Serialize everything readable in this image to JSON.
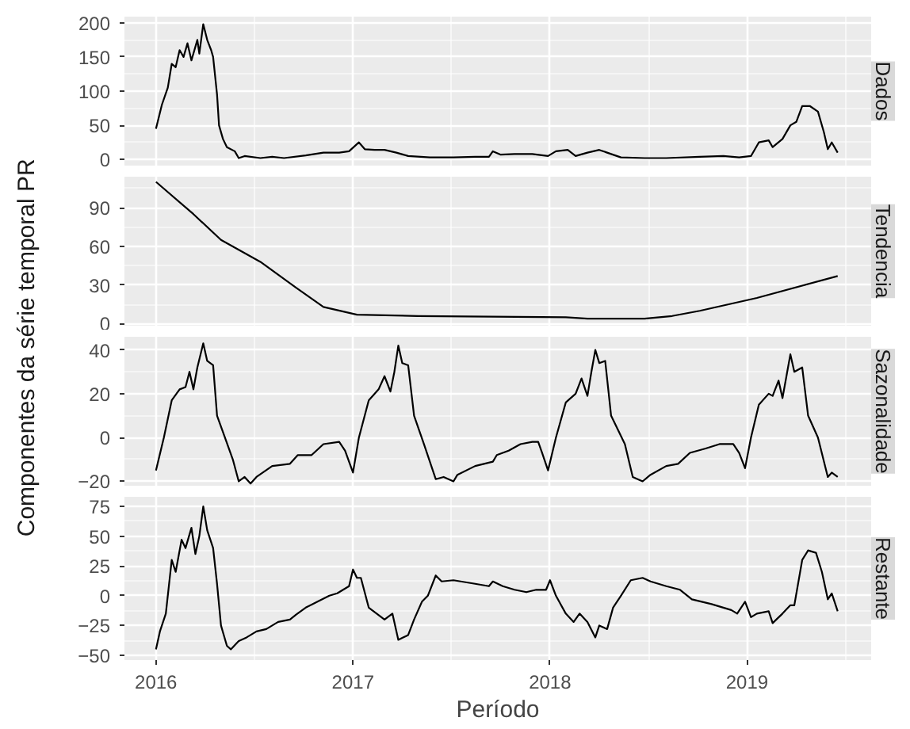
{
  "chart_data": [
    {
      "type": "line",
      "title": "Dados",
      "ylabel": "Componentes da série temporal PR",
      "xlim": [
        2015.84,
        2019.63
      ],
      "xticks": [
        2016,
        2017,
        2018,
        2019
      ],
      "ylim": [
        -9,
        209
      ],
      "yticks": [
        0,
        50,
        100,
        150,
        200
      ],
      "grid": true,
      "tick_labels": "y",
      "line_style": "solid",
      "marker": "none",
      "series": [
        {
          "color": "#000000",
          "x": [
            2016.0,
            2016.03,
            2016.06,
            2016.08,
            2016.1,
            2016.12,
            2016.14,
            2016.16,
            2016.18,
            2016.21,
            2016.22,
            2016.24,
            2016.26,
            2016.28,
            2016.29,
            2016.31,
            2016.32,
            2016.34,
            2016.36,
            2016.4,
            2016.42,
            2016.45,
            2016.53,
            2016.59,
            2016.65,
            2016.76,
            2016.85,
            2016.93,
            2016.98,
            2017.03,
            2017.06,
            2017.11,
            2017.16,
            2017.22,
            2017.28,
            2017.39,
            2017.51,
            2017.62,
            2017.69,
            2017.71,
            2017.75,
            2017.82,
            2017.91,
            2017.99,
            2018.03,
            2018.09,
            2018.13,
            2018.19,
            2018.25,
            2018.31,
            2018.36,
            2018.48,
            2018.59,
            2018.76,
            2018.88,
            2018.96,
            2019.02,
            2019.06,
            2019.11,
            2019.13,
            2019.18,
            2019.22,
            2019.25,
            2019.28,
            2019.32,
            2019.36,
            2019.39,
            2019.41,
            2019.43,
            2019.46
          ],
          "values": [
            45,
            80,
            105,
            140,
            135,
            160,
            150,
            170,
            145,
            175,
            155,
            198,
            175,
            160,
            150,
            95,
            50,
            30,
            18,
            12,
            2,
            5,
            2,
            4,
            2,
            6,
            10,
            10,
            12,
            25,
            15,
            14,
            14,
            10,
            5,
            3,
            3,
            4,
            4,
            12,
            7,
            8,
            8,
            5,
            12,
            14,
            5,
            10,
            14,
            8,
            3,
            2,
            2,
            4,
            5,
            3,
            5,
            25,
            28,
            18,
            30,
            50,
            55,
            78,
            78,
            70,
            40,
            15,
            25,
            10
          ]
        }
      ]
    },
    {
      "type": "line",
      "title": "Tendencia",
      "xlim": [
        2015.84,
        2019.63
      ],
      "xticks": [
        2016,
        2017,
        2018,
        2019
      ],
      "ylim": [
        -1.5,
        114
      ],
      "yticks": [
        0,
        30,
        60,
        90
      ],
      "grid": true,
      "tick_labels": "y",
      "line_style": "solid",
      "marker": "none",
      "series": [
        {
          "color": "#000000",
          "x": [
            2016.0,
            2016.19,
            2016.33,
            2016.53,
            2016.71,
            2016.85,
            2017.02,
            2017.33,
            2018.08,
            2018.19,
            2018.48,
            2018.62,
            2018.76,
            2019.05,
            2019.46
          ],
          "values": [
            110,
            85,
            65,
            48,
            28,
            13,
            7,
            6,
            5,
            4,
            4,
            6,
            10,
            20,
            37
          ]
        }
      ]
    },
    {
      "type": "line",
      "title": "Sazonalidade",
      "xlim": [
        2015.84,
        2019.63
      ],
      "xticks": [
        2016,
        2017,
        2018,
        2019
      ],
      "ylim": [
        -22,
        46
      ],
      "yticks": [
        -20,
        0,
        20,
        40
      ],
      "grid": true,
      "tick_labels": "y",
      "line_style": "solid",
      "marker": "none",
      "series": [
        {
          "color": "#000000",
          "x": [
            2016.0,
            2016.04,
            2016.08,
            2016.12,
            2016.15,
            2016.17,
            2016.19,
            2016.21,
            2016.24,
            2016.26,
            2016.29,
            2016.31,
            2016.35,
            2016.39,
            2016.42,
            2016.45,
            2016.48,
            2016.51,
            2016.59,
            2016.68,
            2016.72,
            2016.79,
            2016.85,
            2016.93,
            2016.96,
            2017.0,
            2017.03,
            2017.08,
            2017.13,
            2017.16,
            2017.19,
            2017.21,
            2017.23,
            2017.25,
            2017.28,
            2017.31,
            2017.36,
            2017.42,
            2017.46,
            2017.51,
            2017.53,
            2017.62,
            2017.71,
            2017.73,
            2017.79,
            2017.85,
            2017.91,
            2017.94,
            2017.96,
            2017.99,
            2018.03,
            2018.08,
            2018.13,
            2018.16,
            2018.19,
            2018.21,
            2018.23,
            2018.25,
            2018.28,
            2018.31,
            2018.38,
            2018.42,
            2018.47,
            2018.51,
            2018.59,
            2018.65,
            2018.71,
            2018.79,
            2018.86,
            2018.93,
            2018.96,
            2018.99,
            2019.02,
            2019.06,
            2019.11,
            2019.13,
            2019.16,
            2019.18,
            2019.2,
            2019.22,
            2019.24,
            2019.28,
            2019.31,
            2019.36,
            2019.41,
            2019.43,
            2019.46
          ],
          "values": [
            -15,
            0,
            17,
            22,
            23,
            30,
            22,
            32,
            43,
            35,
            33,
            10,
            0,
            -10,
            -20,
            -18,
            -21,
            -18,
            -13,
            -12,
            -8,
            -8,
            -3,
            -2,
            -6,
            -16,
            0,
            17,
            22,
            28,
            21,
            30,
            42,
            34,
            33,
            10,
            -3,
            -19,
            -18,
            -20,
            -17,
            -13,
            -11,
            -8,
            -6,
            -3,
            -2,
            -2,
            -7,
            -15,
            0,
            16,
            20,
            27,
            19,
            30,
            40,
            34,
            35,
            10,
            -3,
            -18,
            -20,
            -17,
            -13,
            -12,
            -7,
            -5,
            -3,
            -3,
            -7,
            -14,
            0,
            15,
            20,
            19,
            26,
            18,
            28,
            38,
            30,
            32,
            10,
            0,
            -18,
            -16,
            -18
          ]
        }
      ]
    },
    {
      "type": "line",
      "title": "Restante",
      "xlabel": "Período",
      "xlim": [
        2015.84,
        2019.63
      ],
      "xticks": [
        2016,
        2017,
        2018,
        2019
      ],
      "ylim": [
        -54,
        83
      ],
      "yticks": [
        -50,
        -25,
        0,
        25,
        50,
        75
      ],
      "grid": true,
      "line_style": "solid",
      "marker": "none",
      "series": [
        {
          "color": "#000000",
          "x": [
            2016.0,
            2016.02,
            2016.05,
            2016.08,
            2016.1,
            2016.13,
            2016.15,
            2016.18,
            2016.2,
            2016.22,
            2016.24,
            2016.26,
            2016.29,
            2016.31,
            2016.33,
            2016.36,
            2016.38,
            2016.42,
            2016.46,
            2016.51,
            2016.56,
            2016.62,
            2016.68,
            2016.71,
            2016.76,
            2016.82,
            2016.88,
            2016.92,
            2016.95,
            2016.98,
            2017.0,
            2017.02,
            2017.04,
            2017.08,
            2017.12,
            2017.16,
            2017.2,
            2017.23,
            2017.28,
            2017.31,
            2017.35,
            2017.38,
            2017.42,
            2017.45,
            2017.51,
            2017.62,
            2017.69,
            2017.71,
            2017.76,
            2017.82,
            2017.88,
            2017.93,
            2017.98,
            2018.0,
            2018.03,
            2018.08,
            2018.12,
            2018.15,
            2018.19,
            2018.23,
            2018.25,
            2018.29,
            2018.32,
            2018.36,
            2018.41,
            2018.47,
            2018.51,
            2018.59,
            2018.66,
            2018.72,
            2018.82,
            2018.92,
            2018.95,
            2018.99,
            2019.02,
            2019.05,
            2019.11,
            2019.13,
            2019.18,
            2019.22,
            2019.24,
            2019.28,
            2019.31,
            2019.35,
            2019.38,
            2019.41,
            2019.43,
            2019.46
          ],
          "values": [
            -45,
            -30,
            -15,
            30,
            20,
            47,
            40,
            57,
            35,
            50,
            75,
            55,
            40,
            10,
            -25,
            -42,
            -45,
            -38,
            -35,
            -30,
            -28,
            -22,
            -20,
            -16,
            -10,
            -5,
            0,
            2,
            5,
            8,
            22,
            15,
            15,
            -10,
            -15,
            -20,
            -15,
            -37,
            -33,
            -20,
            -5,
            0,
            17,
            12,
            13,
            10,
            8,
            12,
            8,
            5,
            3,
            5,
            5,
            13,
            0,
            -15,
            -22,
            -15,
            -22,
            -35,
            -25,
            -28,
            -10,
            0,
            13,
            15,
            12,
            8,
            5,
            -3,
            -7,
            -12,
            -15,
            -5,
            -18,
            -15,
            -13,
            -23,
            -15,
            -8,
            -8,
            30,
            38,
            36,
            20,
            -3,
            2,
            -13
          ]
        }
      ]
    }
  ]
}
